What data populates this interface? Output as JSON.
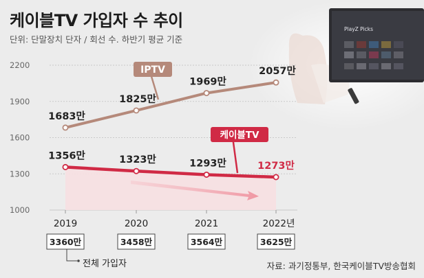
{
  "header": {
    "title": "케이블TV 가입자 수 추이",
    "subtitle": "단위: 단말장치 단자 / 회선 수. 하반기 평균 기준"
  },
  "colors": {
    "iptv": "#b5897a",
    "cable": "#d02a45",
    "cable_fill": "#f7e0e2",
    "background": "#ececec"
  },
  "chart_data": {
    "type": "line",
    "categories": [
      "2019",
      "2020",
      "2021",
      "2022년"
    ],
    "ylim": [
      1000,
      2200
    ],
    "y_ticks": [
      "1000",
      "1300",
      "1600",
      "1900",
      "2200"
    ],
    "grid": true,
    "series": [
      {
        "name": "IPTV",
        "values": [
          1683,
          1825,
          1969,
          2057
        ],
        "labels": [
          "1683만",
          "1825만",
          "1969만",
          "2057만"
        ]
      },
      {
        "name": "케이블TV",
        "values": [
          1356,
          1323,
          1293,
          1273
        ],
        "labels": [
          "1356만",
          "1323만",
          "1293만",
          "1273만"
        ]
      }
    ],
    "totals": {
      "values": [
        3360,
        3458,
        3564,
        3625
      ],
      "labels": [
        "3360만",
        "3458만",
        "3564만",
        "3625만"
      ],
      "caption": "전체 가입자"
    }
  },
  "footer": {
    "source": "자료: 과기정통부, 한국케이블TV방송협회"
  },
  "photo": {
    "tv_label": "PlayZ Picks"
  }
}
